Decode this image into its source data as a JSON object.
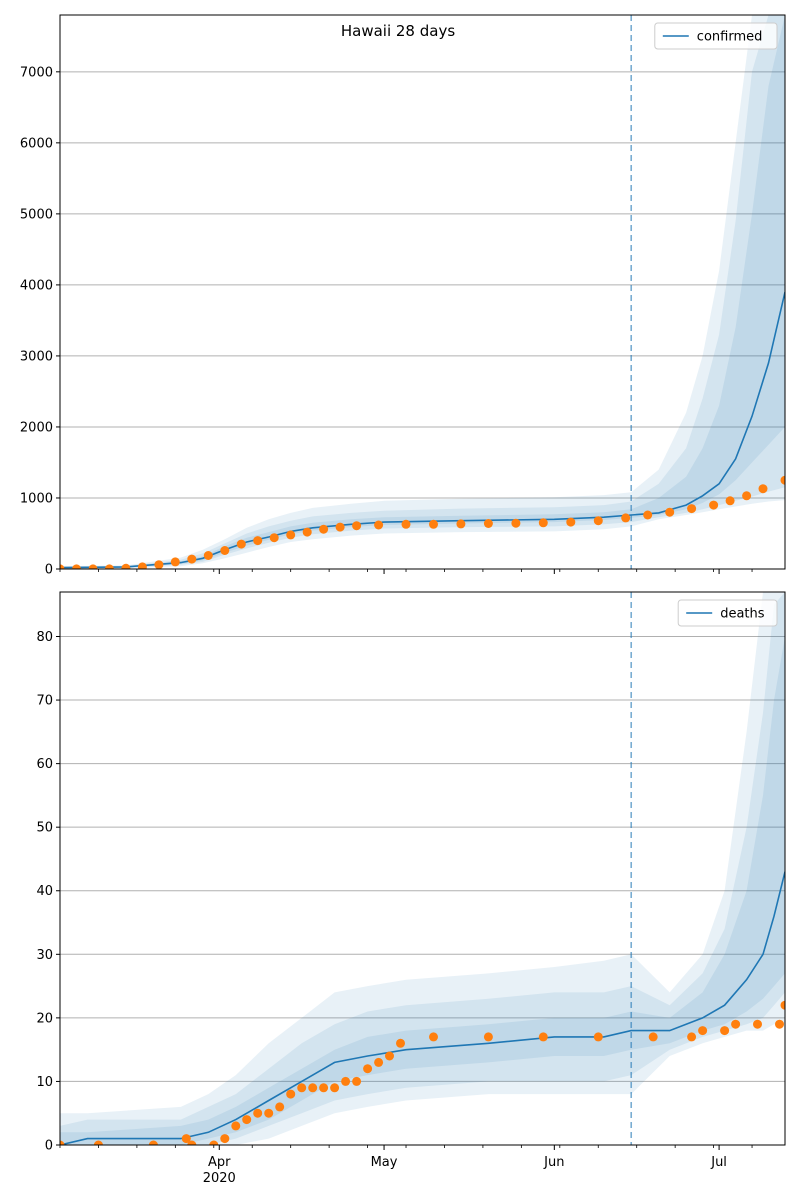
{
  "figure": {
    "title": "Hawaii 28 days"
  },
  "colors": {
    "model": "#1f77b4",
    "observed": "#ff7f0e",
    "grid": "#b0b0b0",
    "band": "#1f77b4"
  },
  "chart_data": [
    {
      "type": "line",
      "legend": {
        "label": "confirmed",
        "placement": "top-right"
      },
      "title": "Hawaii 28 days",
      "xlabel": "",
      "ylabel": "",
      "x_range": [
        "2020-03-03",
        "2020-07-13"
      ],
      "ylim": [
        0,
        7800
      ],
      "y_ticks": [
        0,
        1000,
        2000,
        3000,
        4000,
        5000,
        6000,
        7000
      ],
      "grid": "y",
      "forecast_start": "2020-06-15",
      "x_ticks": [
        {
          "date": "2020-04-01",
          "label": "Apr",
          "sub": "2020"
        },
        {
          "date": "2020-05-01",
          "label": "May",
          "sub": ""
        },
        {
          "date": "2020-06-01",
          "label": "Jun",
          "sub": ""
        },
        {
          "date": "2020-07-01",
          "label": "Jul",
          "sub": ""
        }
      ],
      "model": {
        "dates": [
          "2020-03-03",
          "2020-03-15",
          "2020-03-25",
          "2020-03-29",
          "2020-04-02",
          "2020-04-06",
          "2020-04-10",
          "2020-04-14",
          "2020-04-18",
          "2020-04-25",
          "2020-05-01",
          "2020-05-15",
          "2020-06-01",
          "2020-06-10",
          "2020-06-15",
          "2020-06-20",
          "2020-06-25",
          "2020-06-28",
          "2020-07-01",
          "2020-07-04",
          "2020-07-07",
          "2020-07-10",
          "2020-07-13"
        ],
        "median": [
          20,
          30,
          90,
          150,
          270,
          380,
          450,
          530,
          580,
          630,
          660,
          680,
          700,
          730,
          760,
          790,
          900,
          1030,
          1200,
          1550,
          2150,
          2900,
          3900
        ],
        "bands": [
          {
            "lower": [
              0,
              10,
              40,
              80,
              150,
              230,
              310,
              380,
              420,
              470,
              500,
              520,
              530,
              560,
              600,
              700,
              760,
              800,
              840,
              880,
              920,
              950,
              970
            ],
            "upper": [
              40,
              50,
              160,
              270,
              420,
              580,
              700,
              790,
              860,
              920,
              960,
              990,
              1010,
              1040,
              1080,
              1400,
              2200,
              3000,
              4200,
              6000,
              7800,
              7800,
              7800
            ]
          },
          {
            "lower": [
              0,
              15,
              60,
              100,
              200,
              290,
              370,
              440,
              490,
              540,
              570,
              590,
              600,
              630,
              660,
              730,
              790,
              840,
              900,
              960,
              1020,
              1090,
              1150
            ],
            "upper": [
              30,
              40,
              130,
              220,
              360,
              500,
              600,
              680,
              740,
              790,
              820,
              850,
              870,
              900,
              950,
              1200,
              1700,
              2400,
              3300,
              4900,
              7000,
              7800,
              7800
            ]
          },
          {
            "lower": [
              5,
              20,
              70,
              120,
              230,
              330,
              410,
              490,
              540,
              590,
              620,
              640,
              660,
              690,
              720,
              760,
              840,
              930,
              1050,
              1250,
              1500,
              1750,
              2000
            ],
            "upper": [
              25,
              35,
              110,
              180,
              320,
              440,
              520,
              600,
              650,
              700,
              730,
              750,
              770,
              800,
              840,
              1000,
              1300,
              1700,
              2300,
              3400,
              5000,
              6800,
              7800
            ]
          }
        ]
      },
      "observed": {
        "dates": [
          "2020-03-03",
          "2020-03-06",
          "2020-03-09",
          "2020-03-12",
          "2020-03-15",
          "2020-03-18",
          "2020-03-21",
          "2020-03-24",
          "2020-03-27",
          "2020-03-30",
          "2020-04-02",
          "2020-04-05",
          "2020-04-08",
          "2020-04-11",
          "2020-04-14",
          "2020-04-17",
          "2020-04-20",
          "2020-04-23",
          "2020-04-26",
          "2020-04-30",
          "2020-05-05",
          "2020-05-10",
          "2020-05-15",
          "2020-05-20",
          "2020-05-25",
          "2020-05-30",
          "2020-06-04",
          "2020-06-09",
          "2020-06-14",
          "2020-06-18",
          "2020-06-22",
          "2020-06-26",
          "2020-06-30",
          "2020-07-03",
          "2020-07-06",
          "2020-07-09",
          "2020-07-13"
        ],
        "values": [
          2,
          2,
          2,
          2,
          10,
          30,
          60,
          100,
          140,
          190,
          260,
          350,
          400,
          440,
          480,
          520,
          560,
          590,
          610,
          620,
          630,
          630,
          635,
          640,
          645,
          650,
          660,
          680,
          720,
          760,
          800,
          850,
          900,
          960,
          1030,
          1130,
          1250
        ]
      }
    },
    {
      "type": "line",
      "legend": {
        "label": "deaths",
        "placement": "top-right"
      },
      "xlabel": "",
      "ylabel": "",
      "x_range": [
        "2020-03-03",
        "2020-07-13"
      ],
      "ylim": [
        0,
        87
      ],
      "y_ticks": [
        0,
        10,
        20,
        30,
        40,
        50,
        60,
        70,
        80
      ],
      "grid": "y",
      "forecast_start": "2020-06-15",
      "x_ticks": [
        {
          "date": "2020-04-01",
          "label": "Apr",
          "sub": "2020"
        },
        {
          "date": "2020-05-01",
          "label": "May",
          "sub": ""
        },
        {
          "date": "2020-06-01",
          "label": "Jun",
          "sub": ""
        },
        {
          "date": "2020-07-01",
          "label": "Jul",
          "sub": ""
        }
      ],
      "model": {
        "dates": [
          "2020-03-03",
          "2020-03-08",
          "2020-03-25",
          "2020-03-30",
          "2020-04-04",
          "2020-04-10",
          "2020-04-16",
          "2020-04-22",
          "2020-04-28",
          "2020-05-05",
          "2020-05-20",
          "2020-06-01",
          "2020-06-10",
          "2020-06-15",
          "2020-06-22",
          "2020-06-28",
          "2020-07-02",
          "2020-07-06",
          "2020-07-09",
          "2020-07-11",
          "2020-07-13"
        ],
        "median": [
          0,
          1,
          1,
          2,
          4,
          7,
          10,
          13,
          14,
          15,
          16,
          17,
          17,
          18,
          18,
          20,
          22,
          26,
          30,
          36,
          43
        ],
        "bands": [
          {
            "lower": [
              0,
              0,
              0,
              0,
              0,
              1,
              3,
              5,
              6,
              7,
              8,
              8,
              8,
              8,
              14,
              16,
              17,
              18,
              18,
              19,
              19
            ],
            "upper": [
              5,
              5,
              6,
              8,
              11,
              16,
              20,
              24,
              25,
              26,
              27,
              28,
              29,
              30,
              24,
              30,
              40,
              65,
              87,
              87,
              87
            ]
          },
          {
            "lower": [
              0,
              0,
              0,
              0,
              1,
              3,
              5,
              7,
              8,
              9,
              10,
              10,
              10,
              11,
              15,
              17,
              18,
              19,
              20,
              22,
              24
            ],
            "upper": [
              3,
              4,
              4,
              6,
              8,
              12,
              16,
              19,
              21,
              22,
              23,
              24,
              24,
              25,
              22,
              27,
              34,
              50,
              68,
              85,
              87
            ]
          },
          {
            "lower": [
              0,
              0,
              0,
              1,
              2,
              4,
              7,
              10,
              11,
              12,
              13,
              14,
              14,
              15,
              16,
              18,
              19,
              21,
              23,
              25,
              27
            ],
            "upper": [
              2,
              2,
              3,
              4,
              6,
              9,
              12,
              15,
              17,
              18,
              19,
              20,
              20,
              21,
              20,
              24,
              30,
              40,
              55,
              70,
              80
            ]
          }
        ]
      },
      "observed": {
        "dates": [
          "2020-03-03",
          "2020-03-10",
          "2020-03-20",
          "2020-03-26",
          "2020-03-27",
          "2020-03-31",
          "2020-04-02",
          "2020-04-04",
          "2020-04-06",
          "2020-04-08",
          "2020-04-10",
          "2020-04-12",
          "2020-04-14",
          "2020-04-16",
          "2020-04-18",
          "2020-04-20",
          "2020-04-22",
          "2020-04-24",
          "2020-04-26",
          "2020-04-28",
          "2020-04-30",
          "2020-05-02",
          "2020-05-04",
          "2020-05-10",
          "2020-05-20",
          "2020-05-30",
          "2020-06-09",
          "2020-06-19",
          "2020-06-26",
          "2020-06-28",
          "2020-07-02",
          "2020-07-04",
          "2020-07-08",
          "2020-07-12",
          "2020-07-13"
        ],
        "values": [
          0,
          0,
          0,
          1,
          0,
          0,
          1,
          3,
          4,
          5,
          5,
          6,
          8,
          9,
          9,
          9,
          9,
          10,
          10,
          12,
          13,
          14,
          16,
          17,
          17,
          17,
          17,
          17,
          17,
          18,
          18,
          19,
          19,
          19,
          22
        ]
      }
    }
  ]
}
